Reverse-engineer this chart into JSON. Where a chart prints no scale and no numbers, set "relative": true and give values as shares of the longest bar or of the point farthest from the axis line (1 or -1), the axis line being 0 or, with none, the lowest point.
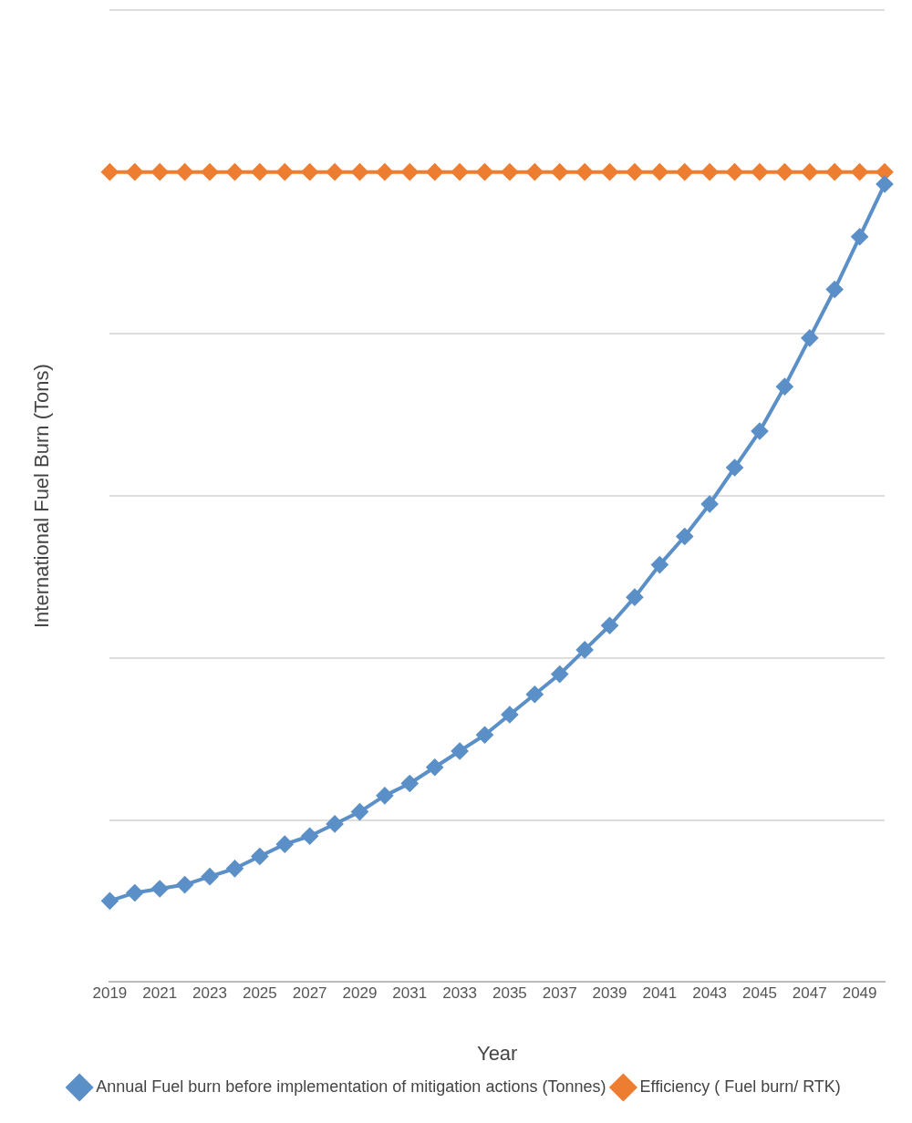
{
  "chart_data": {
    "type": "line",
    "relative": true,
    "xlabel": "Year",
    "ylabel": "International Fuel Burn (Tons)",
    "categories": [
      "2019",
      null,
      "2021",
      null,
      "2023",
      null,
      "2025",
      null,
      "2027",
      null,
      "2029",
      null,
      "2031",
      null,
      "2033",
      null,
      "2035",
      null,
      "2037",
      null,
      "2039",
      null,
      "2041",
      null,
      "2043",
      null,
      "2045",
      null,
      "2047",
      null,
      "2049",
      null
    ],
    "series": [
      {
        "name": "Annual Fuel burn before implementation of mitigation actions (Tonnes)",
        "color": "#5b8fc7",
        "values": [
          0.1,
          0.11,
          0.115,
          0.12,
          0.13,
          0.14,
          0.155,
          0.17,
          0.18,
          0.195,
          0.21,
          0.23,
          0.245,
          0.265,
          0.285,
          0.305,
          0.33,
          0.355,
          0.38,
          0.41,
          0.44,
          0.475,
          0.515,
          0.55,
          0.59,
          0.635,
          0.68,
          0.735,
          0.795,
          0.855,
          0.92,
          0.985
        ]
      },
      {
        "name": "Efficiency ( Fuel burn/ RTK)",
        "color": "#ed7d31",
        "values": [
          1,
          1,
          1,
          1,
          1,
          1,
          1,
          1,
          1,
          1,
          1,
          1,
          1,
          1,
          1,
          1,
          1,
          1,
          1,
          1,
          1,
          1,
          1,
          1,
          1,
          1,
          1,
          1,
          1,
          1,
          1,
          1
        ]
      }
    ],
    "grid": "y",
    "legend": "bottom",
    "marker": "diamond",
    "line_style": "solid"
  }
}
